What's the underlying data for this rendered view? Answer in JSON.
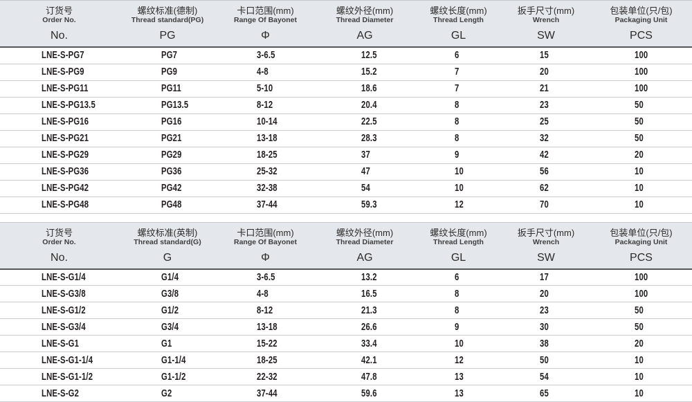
{
  "colors": {
    "header_bg": "#e4e7ec",
    "header_border_dark": "#55565a",
    "row_divider": "#cbcdcf",
    "text_dark": "#242021",
    "page_bg": "#ffffff"
  },
  "tables": [
    {
      "id": "pg-thread-table",
      "columns": [
        {
          "cn": "订货号",
          "en": "Order No.",
          "code": "No."
        },
        {
          "cn": "螺纹标准(德制)",
          "en": "Thread standard(PG)",
          "code": "PG"
        },
        {
          "cn": "卡口范围(mm)",
          "en": "Range Of Bayonet",
          "code": "Φ"
        },
        {
          "cn": "螺纹外径(mm)",
          "en": "Thread Diameter",
          "code": "AG"
        },
        {
          "cn": "螺纹长度(mm)",
          "en": "Thread Length",
          "code": "GL"
        },
        {
          "cn": "扳手尺寸(mm)",
          "en": "Wrench",
          "code": "SW"
        },
        {
          "cn": "包装单位(只/包)",
          "en": "Packaging Unit",
          "code": "PCS"
        }
      ],
      "rows": [
        [
          "LNE-S-PG7",
          "PG7",
          "3-6.5",
          "12.5",
          "6",
          "15",
          "100"
        ],
        [
          "LNE-S-PG9",
          "PG9",
          "4-8",
          "15.2",
          "7",
          "20",
          "100"
        ],
        [
          "LNE-S-PG11",
          "PG11",
          "5-10",
          "18.6",
          "7",
          "21",
          "100"
        ],
        [
          "LNE-S-PG13.5",
          "PG13.5",
          "8-12",
          "20.4",
          "8",
          "23",
          "50"
        ],
        [
          "LNE-S-PG16",
          "PG16",
          "10-14",
          "22.5",
          "8",
          "25",
          "50"
        ],
        [
          "LNE-S-PG21",
          "PG21",
          "13-18",
          "28.3",
          "8",
          "32",
          "50"
        ],
        [
          "LNE-S-PG29",
          "PG29",
          "18-25",
          "37",
          "9",
          "42",
          "20"
        ],
        [
          "LNE-S-PG36",
          "PG36",
          "25-32",
          "47",
          "10",
          "56",
          "10"
        ],
        [
          "LNE-S-PG42",
          "PG42",
          "32-38",
          "54",
          "10",
          "62",
          "10"
        ],
        [
          "LNE-S-PG48",
          "PG48",
          "37-44",
          "59.3",
          "12",
          "70",
          "10"
        ]
      ]
    },
    {
      "id": "g-thread-table",
      "columns": [
        {
          "cn": "订货号",
          "en": "Order No.",
          "code": "No."
        },
        {
          "cn": "螺纹标准(英制)",
          "en": "Thread standard(G)",
          "code": "G"
        },
        {
          "cn": "卡口范围(mm)",
          "en": "Range Of Bayonet",
          "code": "Φ"
        },
        {
          "cn": "螺纹外径(mm)",
          "en": "Thread Diameter",
          "code": "AG"
        },
        {
          "cn": "螺纹长度(mm)",
          "en": "Thread Length",
          "code": "GL"
        },
        {
          "cn": "扳手尺寸(mm)",
          "en": "Wrench",
          "code": "SW"
        },
        {
          "cn": "包装单位(只/包)",
          "en": "Packaging Unit",
          "code": "PCS"
        }
      ],
      "rows": [
        [
          "LNE-S-G1/4",
          "G1/4",
          "3-6.5",
          "13.2",
          "6",
          "17",
          "100"
        ],
        [
          "LNE-S-G3/8",
          "G3/8",
          "4-8",
          "16.5",
          "8",
          "20",
          "100"
        ],
        [
          "LNE-S-G1/2",
          "G1/2",
          "8-12",
          "21.3",
          "8",
          "23",
          "50"
        ],
        [
          "LNE-S-G3/4",
          "G3/4",
          "13-18",
          "26.6",
          "9",
          "30",
          "50"
        ],
        [
          "LNE-S-G1",
          "G1",
          "15-22",
          "33.4",
          "10",
          "38",
          "20"
        ],
        [
          "LNE-S-G1-1/4",
          "G1-1/4",
          "18-25",
          "42.1",
          "12",
          "50",
          "10"
        ],
        [
          "LNE-S-G1-1/2",
          "G1-1/2",
          "22-32",
          "47.8",
          "13",
          "54",
          "10"
        ],
        [
          "LNE-S-G2",
          "G2",
          "37-44",
          "59.6",
          "13",
          "65",
          "10"
        ]
      ]
    }
  ]
}
